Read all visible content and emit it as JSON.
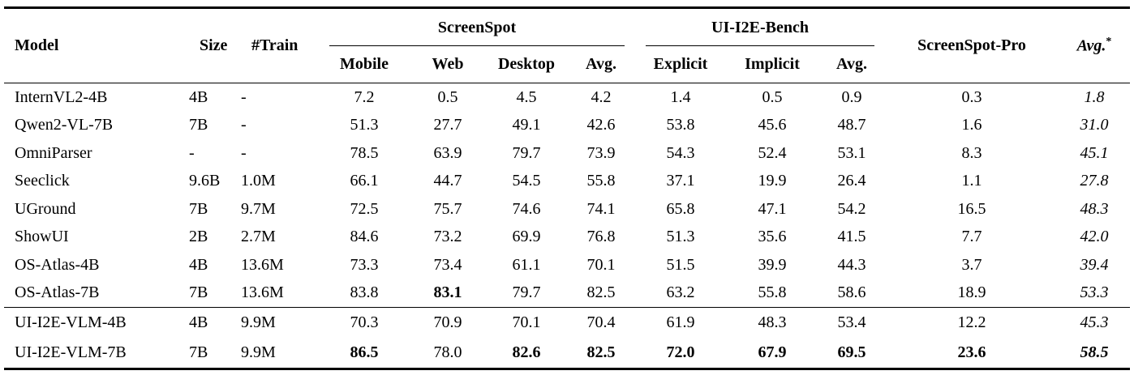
{
  "page": {
    "background_color": "#ffffff",
    "text_color": "#000000",
    "rule_color": "#000000"
  },
  "table": {
    "header": {
      "model": "Model",
      "size": "Size",
      "train": "#Train",
      "groups": [
        {
          "label": "ScreenSpot",
          "sub": [
            "Mobile",
            "Web",
            "Desktop",
            "Avg."
          ]
        },
        {
          "label": "UI-I2E-Bench",
          "sub": [
            "Explicit",
            "Implicit",
            "Avg."
          ]
        }
      ],
      "screenspot_pro": "ScreenSpot-Pro",
      "avg_star": {
        "label": "Avg.",
        "sup": "*"
      }
    },
    "sections": [
      {
        "rows": [
          {
            "cells": [
              {
                "t": "InternVL2-4B"
              },
              {
                "t": "4B"
              },
              {
                "t": "-"
              },
              {
                "t": "7.2"
              },
              {
                "t": "0.5"
              },
              {
                "t": "4.5"
              },
              {
                "t": "4.2"
              },
              {
                "t": "1.4"
              },
              {
                "t": "0.5"
              },
              {
                "t": "0.9"
              },
              {
                "t": "0.3"
              },
              {
                "t": "1.8",
                "i": true
              }
            ]
          },
          {
            "cells": [
              {
                "t": "Qwen2-VL-7B"
              },
              {
                "t": "7B"
              },
              {
                "t": "-"
              },
              {
                "t": "51.3"
              },
              {
                "t": "27.7"
              },
              {
                "t": "49.1"
              },
              {
                "t": "42.6"
              },
              {
                "t": "53.8"
              },
              {
                "t": "45.6"
              },
              {
                "t": "48.7"
              },
              {
                "t": "1.6"
              },
              {
                "t": "31.0",
                "i": true
              }
            ]
          },
          {
            "cells": [
              {
                "t": "OmniParser"
              },
              {
                "t": "-"
              },
              {
                "t": "-"
              },
              {
                "t": "78.5"
              },
              {
                "t": "63.9"
              },
              {
                "t": "79.7"
              },
              {
                "t": "73.9"
              },
              {
                "t": "54.3"
              },
              {
                "t": "52.4"
              },
              {
                "t": "53.1"
              },
              {
                "t": "8.3"
              },
              {
                "t": "45.1",
                "i": true
              }
            ]
          },
          {
            "cells": [
              {
                "t": "Seeclick"
              },
              {
                "t": "9.6B"
              },
              {
                "t": "1.0M"
              },
              {
                "t": "66.1"
              },
              {
                "t": "44.7"
              },
              {
                "t": "54.5"
              },
              {
                "t": "55.8"
              },
              {
                "t": "37.1"
              },
              {
                "t": "19.9"
              },
              {
                "t": "26.4"
              },
              {
                "t": "1.1"
              },
              {
                "t": "27.8",
                "i": true
              }
            ]
          },
          {
            "cells": [
              {
                "t": "UGround"
              },
              {
                "t": "7B"
              },
              {
                "t": "9.7M"
              },
              {
                "t": "72.5"
              },
              {
                "t": "75.7"
              },
              {
                "t": "74.6"
              },
              {
                "t": "74.1"
              },
              {
                "t": "65.8"
              },
              {
                "t": "47.1"
              },
              {
                "t": "54.2"
              },
              {
                "t": "16.5"
              },
              {
                "t": "48.3",
                "i": true
              }
            ]
          },
          {
            "cells": [
              {
                "t": "ShowUI"
              },
              {
                "t": "2B"
              },
              {
                "t": "2.7M"
              },
              {
                "t": "84.6"
              },
              {
                "t": "73.2"
              },
              {
                "t": "69.9"
              },
              {
                "t": "76.8"
              },
              {
                "t": "51.3"
              },
              {
                "t": "35.6"
              },
              {
                "t": "41.5"
              },
              {
                "t": "7.7"
              },
              {
                "t": "42.0",
                "i": true
              }
            ]
          },
          {
            "cells": [
              {
                "t": "OS-Atlas-4B"
              },
              {
                "t": "4B"
              },
              {
                "t": "13.6M"
              },
              {
                "t": "73.3"
              },
              {
                "t": "73.4"
              },
              {
                "t": "61.1"
              },
              {
                "t": "70.1"
              },
              {
                "t": "51.5"
              },
              {
                "t": "39.9"
              },
              {
                "t": "44.3"
              },
              {
                "t": "3.7"
              },
              {
                "t": "39.4",
                "i": true
              }
            ]
          },
          {
            "cells": [
              {
                "t": "OS-Atlas-7B"
              },
              {
                "t": "7B"
              },
              {
                "t": "13.6M"
              },
              {
                "t": "83.8"
              },
              {
                "t": "83.1",
                "b": true
              },
              {
                "t": "79.7"
              },
              {
                "t": "82.5"
              },
              {
                "t": "63.2"
              },
              {
                "t": "55.8"
              },
              {
                "t": "58.6"
              },
              {
                "t": "18.9"
              },
              {
                "t": "53.3",
                "i": true
              }
            ]
          }
        ]
      },
      {
        "rows": [
          {
            "cells": [
              {
                "t": "UI-I2E-VLM-4B"
              },
              {
                "t": "4B"
              },
              {
                "t": "9.9M"
              },
              {
                "t": "70.3"
              },
              {
                "t": "70.9"
              },
              {
                "t": "70.1"
              },
              {
                "t": "70.4"
              },
              {
                "t": "61.9"
              },
              {
                "t": "48.3"
              },
              {
                "t": "53.4"
              },
              {
                "t": "12.2"
              },
              {
                "t": "45.3",
                "i": true
              }
            ]
          },
          {
            "cells": [
              {
                "t": "UI-I2E-VLM-7B"
              },
              {
                "t": "7B"
              },
              {
                "t": "9.9M"
              },
              {
                "t": "86.5",
                "b": true
              },
              {
                "t": "78.0"
              },
              {
                "t": "82.6",
                "b": true
              },
              {
                "t": "82.5",
                "b": true
              },
              {
                "t": "72.0",
                "b": true
              },
              {
                "t": "67.9",
                "b": true
              },
              {
                "t": "69.5",
                "b": true
              },
              {
                "t": "23.6",
                "b": true
              },
              {
                "t": "58.5",
                "b": true,
                "i": true
              }
            ]
          }
        ]
      }
    ]
  }
}
